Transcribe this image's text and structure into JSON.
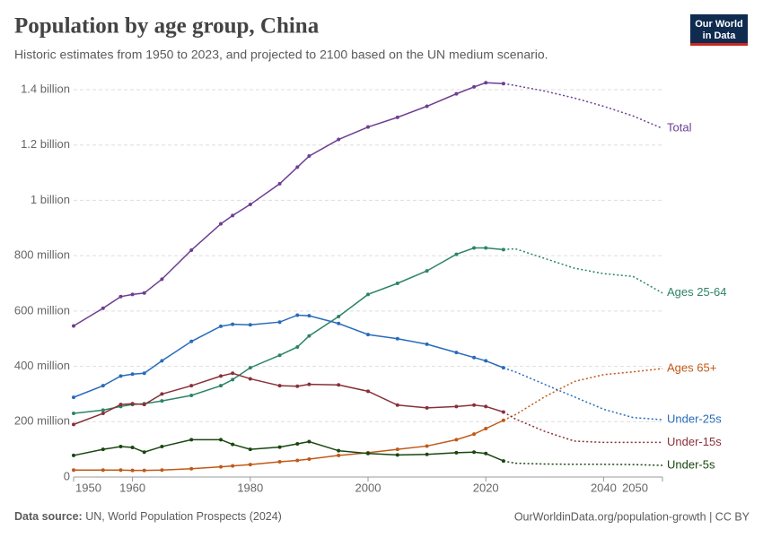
{
  "header": {
    "logo_line1": "Our World",
    "logo_line2": "in Data"
  },
  "footer": {
    "source_label": "Data source:",
    "source": "UN, World Population Prospects (2024)",
    "url": "OurWorldinData.org/population-growth | CC BY"
  },
  "chart_data": {
    "type": "line",
    "title": "Population by age group, China",
    "subtitle": "Historic estimates from 1950 to 2023, and projected to 2100 based on the UN medium scenario.",
    "projection_start": 2023,
    "x": [
      1950,
      1955,
      1958,
      1960,
      1962,
      1965,
      1970,
      1975,
      1977,
      1980,
      1985,
      1988,
      1990,
      1995,
      2000,
      2005,
      2010,
      2015,
      2018,
      2020,
      2023,
      2025,
      2030,
      2035,
      2040,
      2045,
      2050
    ],
    "xlim": [
      1950,
      2050
    ],
    "xticks": [
      1950,
      1960,
      1980,
      2000,
      2020,
      2040,
      2050
    ],
    "ylim": [
      0,
      1400000000
    ],
    "yticks": [
      0,
      {
        "value": 200000000,
        "label": "200 million"
      },
      {
        "value": 400000000,
        "label": "400 million"
      },
      {
        "value": 600000000,
        "label": "600 million"
      },
      {
        "value": 800000000,
        "label": "800 million"
      },
      {
        "value": 1000000000,
        "label": "1 billion"
      },
      {
        "value": 1200000000,
        "label": "1.2 billion"
      },
      {
        "value": 1400000000,
        "label": "1.4 billion"
      }
    ],
    "grid": true,
    "series": [
      {
        "name": "Total",
        "color": "#6d3e91",
        "values": [
          546000000,
          610000000,
          652000000,
          660000000,
          665000000,
          715000000,
          820000000,
          915000000,
          945000000,
          985000000,
          1060000000,
          1120000000,
          1160000000,
          1220000000,
          1265000000,
          1300000000,
          1340000000,
          1385000000,
          1410000000,
          1425000000,
          1422000000,
          1415000000,
          1395000000,
          1370000000,
          1340000000,
          1305000000,
          1260000000
        ]
      },
      {
        "name": "Ages 25-64",
        "color": "#2c8465",
        "values": [
          230000000,
          242000000,
          255000000,
          262000000,
          265000000,
          275000000,
          295000000,
          330000000,
          352000000,
          395000000,
          440000000,
          470000000,
          510000000,
          580000000,
          660000000,
          700000000,
          745000000,
          805000000,
          828000000,
          828000000,
          822000000,
          825000000,
          790000000,
          755000000,
          735000000,
          725000000,
          665000000
        ]
      },
      {
        "name": "Ages 65+",
        "color": "#c05917",
        "values": [
          25000000,
          25000000,
          25000000,
          24000000,
          24000000,
          25000000,
          30000000,
          37000000,
          40000000,
          45000000,
          55000000,
          60000000,
          65000000,
          78000000,
          88000000,
          100000000,
          112000000,
          135000000,
          155000000,
          175000000,
          205000000,
          225000000,
          290000000,
          345000000,
          370000000,
          380000000,
          392000000
        ]
      },
      {
        "name": "Under-25s",
        "color": "#286bbb",
        "values": [
          288000000,
          330000000,
          365000000,
          372000000,
          375000000,
          420000000,
          490000000,
          545000000,
          552000000,
          550000000,
          560000000,
          585000000,
          583000000,
          555000000,
          515000000,
          500000000,
          480000000,
          450000000,
          432000000,
          420000000,
          395000000,
          380000000,
          335000000,
          290000000,
          245000000,
          215000000,
          207000000
        ]
      },
      {
        "name": "Under-15s",
        "color": "#883039",
        "values": [
          190000000,
          230000000,
          262000000,
          265000000,
          262000000,
          300000000,
          330000000,
          365000000,
          375000000,
          355000000,
          330000000,
          328000000,
          335000000,
          333000000,
          310000000,
          260000000,
          250000000,
          255000000,
          260000000,
          255000000,
          235000000,
          210000000,
          165000000,
          130000000,
          125000000,
          125000000,
          125000000
        ]
      },
      {
        "name": "Under-5s",
        "color": "#18470f",
        "values": [
          78000000,
          100000000,
          110000000,
          107000000,
          90000000,
          110000000,
          135000000,
          135000000,
          118000000,
          100000000,
          108000000,
          120000000,
          128000000,
          95000000,
          85000000,
          80000000,
          82000000,
          88000000,
          90000000,
          85000000,
          58000000,
          50000000,
          47000000,
          46000000,
          46000000,
          45000000,
          42000000
        ]
      }
    ]
  }
}
